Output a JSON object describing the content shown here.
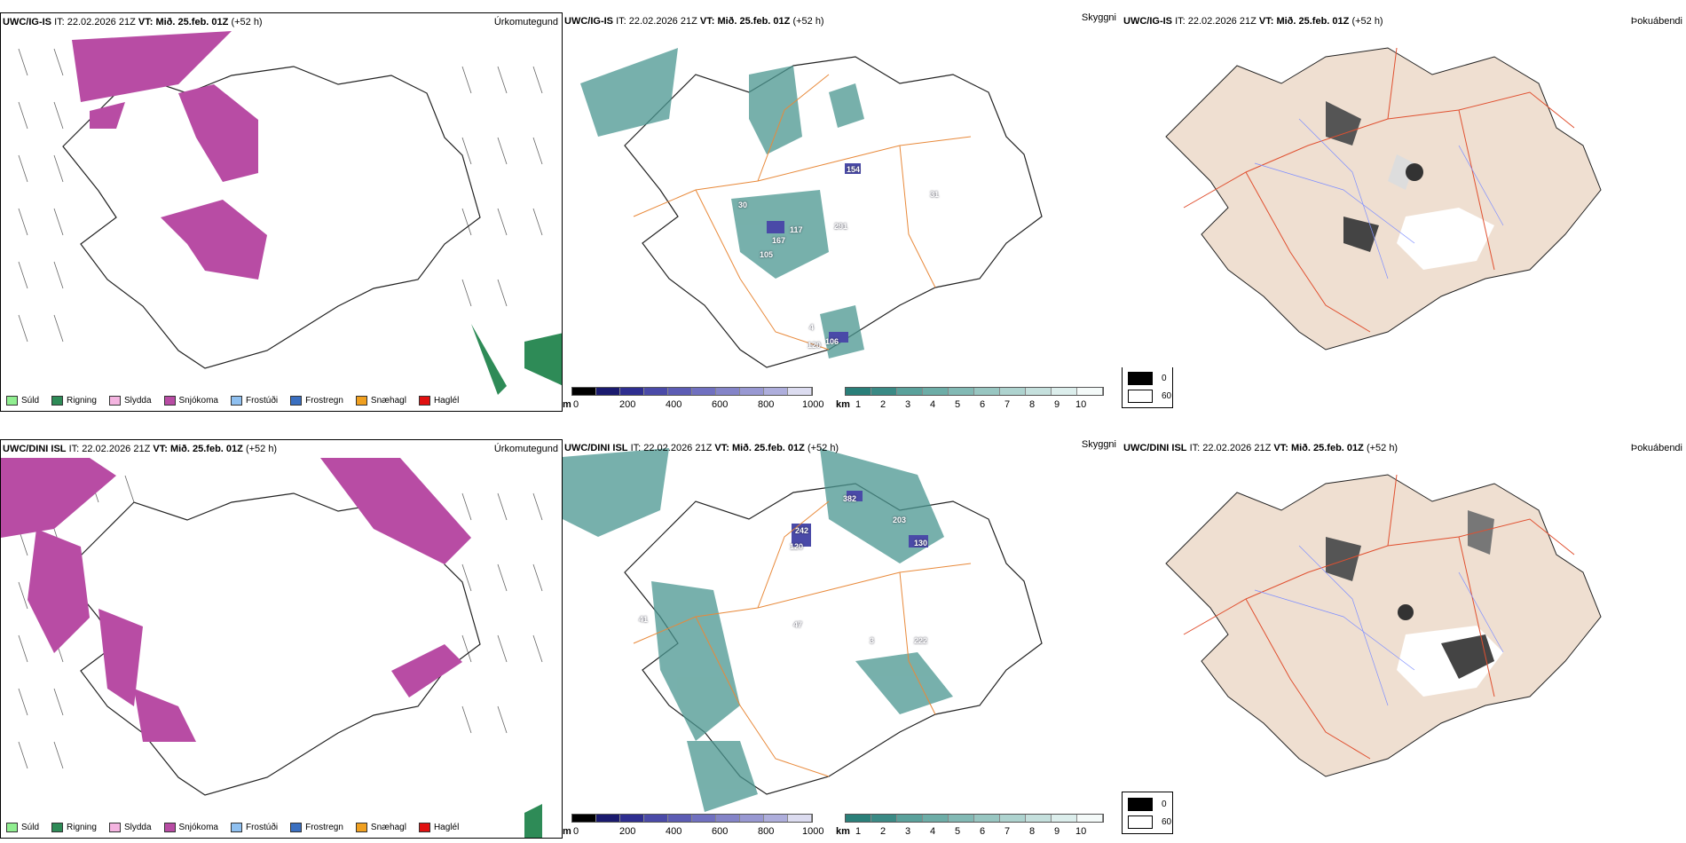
{
  "rows": [
    {
      "model": "UWC/IG-IS",
      "it_label": "IT:",
      "issue_time": "22.02.2026 21Z",
      "vt_label": "VT:",
      "valid_time": "Mið. 25.feb. 01Z",
      "lead": "(+52 h)",
      "precip_title": "Úrkomutegund",
      "cloud_title": "Skyggni",
      "fog_title": "Þokuábendi",
      "station_labels": [
        "154",
        "117",
        "167",
        "105",
        "291",
        "106",
        "120",
        "4",
        "31",
        "30"
      ]
    },
    {
      "model": "UWC/DINI ISL",
      "it_label": "IT:",
      "issue_time": "22.02.2026 21Z",
      "vt_label": "VT:",
      "valid_time": "Mið. 25.feb. 01Z",
      "lead": "(+52 h)",
      "precip_title": "Úrkomutegund",
      "cloud_title": "Skyggni",
      "fog_title": "Þokuábendi",
      "station_labels": [
        "382",
        "203",
        "130",
        "242",
        "120",
        "47",
        "222",
        "41",
        "3"
      ]
    }
  ],
  "precip_legend": [
    {
      "label": "Súld",
      "color": "#90ee90"
    },
    {
      "label": "Rigning",
      "color": "#2e8b57"
    },
    {
      "label": "Slydda",
      "color": "#f4b4e0"
    },
    {
      "label": "Snjókoma",
      "color": "#b84ca4"
    },
    {
      "label": "Frostúði",
      "color": "#8fc0f0"
    },
    {
      "label": "Frostregn",
      "color": "#3a6fc0"
    },
    {
      "label": "Snæhagl",
      "color": "#f0a020"
    },
    {
      "label": "Haglél",
      "color": "#e01010"
    }
  ],
  "ceiling_scale": {
    "unit": "m",
    "ticks": [
      "0",
      "200",
      "400",
      "600",
      "800",
      "1000"
    ],
    "colors": [
      "#000000",
      "#1a1a6e",
      "#2e2e90",
      "#4a4aa8",
      "#5c5cb4",
      "#7070c0",
      "#8484c8",
      "#9898d2",
      "#aeaedc",
      "#c4c4e6",
      "#dcdcf0"
    ]
  },
  "visibility_scale": {
    "unit": "km",
    "ticks": [
      "1",
      "2",
      "3",
      "4",
      "5",
      "6",
      "7",
      "8",
      "9",
      "10"
    ],
    "colors": [
      "#2a7f79",
      "#3a8a85",
      "#4a9690",
      "#5aa19b",
      "#6dada7",
      "#82b9b4",
      "#98c6c1",
      "#aed3cf",
      "#c5e0dd",
      "#dceeec",
      "#f4faf9"
    ]
  },
  "fog_legend": [
    {
      "label": "0",
      "color": "#000000"
    },
    {
      "label": "60",
      "color": "#ffffff"
    }
  ]
}
